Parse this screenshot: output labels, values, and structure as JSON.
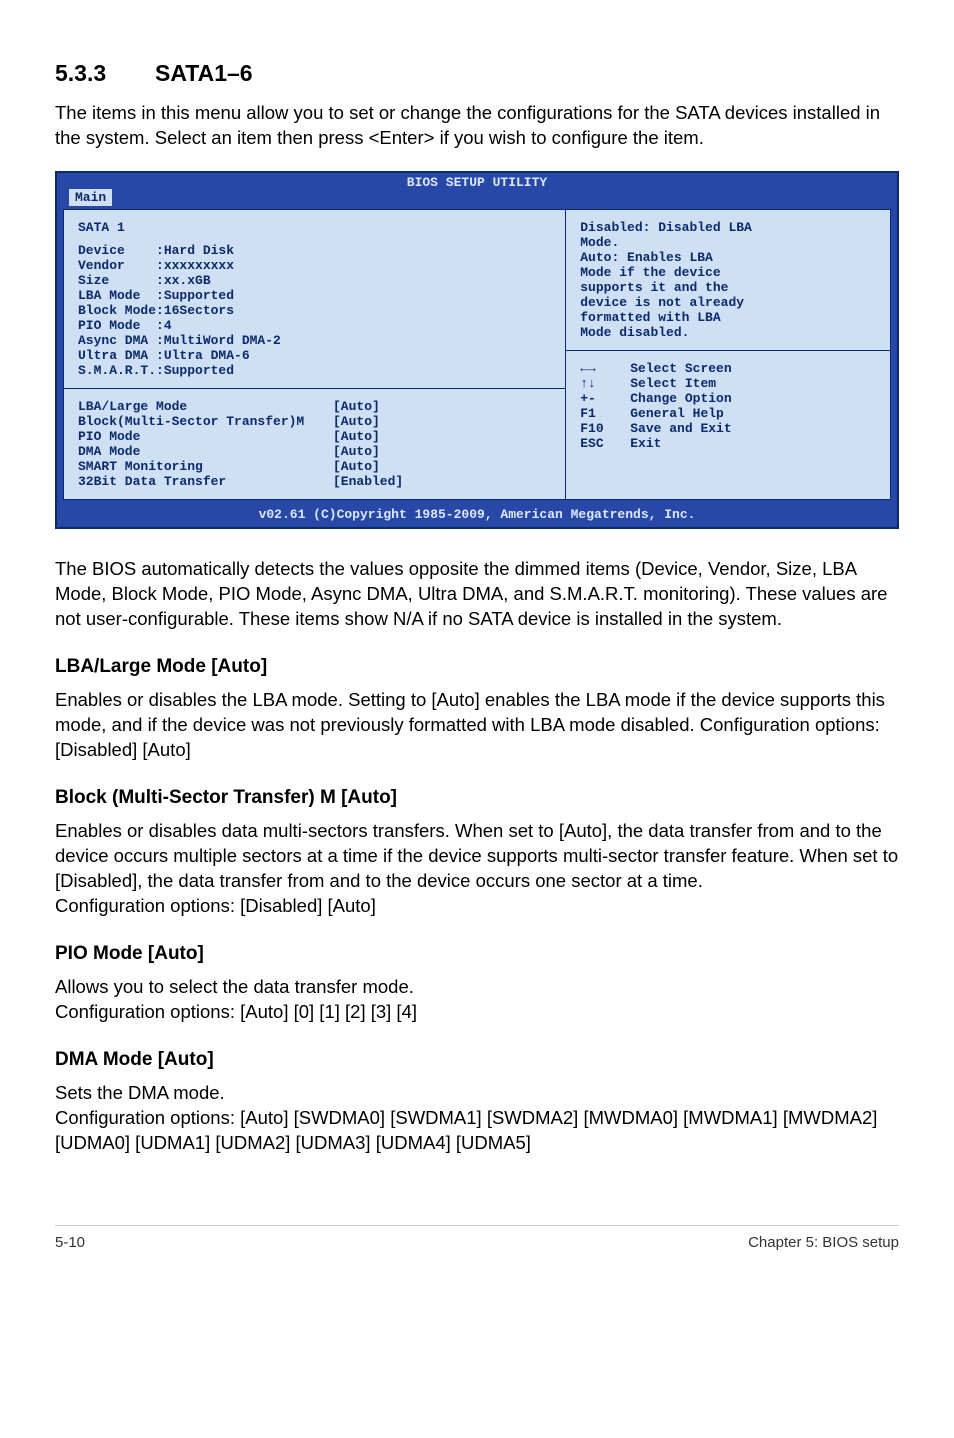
{
  "section": {
    "number": "5.3.3",
    "title": "SATA1–6",
    "intro": "The items in this menu allow you to set or change the configurations for the SATA devices installed in the system. Select an item then press <Enter> if you wish to configure the item."
  },
  "bios": {
    "title": "BIOS SETUP UTILITY",
    "tab": "Main",
    "left_heading": "SATA 1",
    "info_rows": [
      {
        "label": "Device    ",
        "value": ":Hard Disk"
      },
      {
        "label": "Vendor    ",
        "value": ":xxxxxxxxx"
      },
      {
        "label": "Size      ",
        "value": ":xx.xGB"
      },
      {
        "label": "LBA Mode  ",
        "value": ":Supported"
      },
      {
        "label": "Block Mode",
        "value": ":16Sectors"
      },
      {
        "label": "PIO Mode  ",
        "value": ":4"
      },
      {
        "label": "Async DMA ",
        "value": ":MultiWord DMA-2"
      },
      {
        "label": "Ultra DMA ",
        "value": ":Ultra DMA-6"
      },
      {
        "label": "S.M.A.R.T.",
        "value": ":Supported"
      }
    ],
    "setting_rows": [
      {
        "label": "LBA/Large Mode",
        "value": "[Auto]"
      },
      {
        "label": "Block(Multi-Sector Transfer)M",
        "value": "[Auto]"
      },
      {
        "label": "PIO Mode",
        "value": "[Auto]"
      },
      {
        "label": "DMA Mode",
        "value": "[Auto]"
      },
      {
        "label": "SMART Monitoring",
        "value": "[Auto]"
      },
      {
        "label": "32Bit Data Transfer",
        "value": "[Enabled]"
      }
    ],
    "help_top": [
      "Disabled: Disabled LBA",
      "Mode.",
      "Auto: Enables LBA",
      "Mode if the device",
      "supports it and the",
      "device is not already",
      "formatted with LBA",
      "Mode disabled."
    ],
    "nav_rows": [
      {
        "key": "←→",
        "label": "Select Screen"
      },
      {
        "key": "↑↓",
        "label": "Select Item"
      },
      {
        "key": "+-",
        "label": "Change Option"
      },
      {
        "key": "F1",
        "label": "General Help"
      },
      {
        "key": "F10",
        "label": "Save and Exit"
      },
      {
        "key": "ESC",
        "label": "Exit"
      }
    ],
    "footer": "v02.61 (C)Copyright 1985-2009, American Megatrends, Inc."
  },
  "paragraphs": {
    "after_bios": "The BIOS automatically detects the values opposite the dimmed items (Device, Vendor, Size, LBA Mode, Block Mode, PIO Mode, Async DMA, Ultra DMA, and S.M.A.R.T. monitoring). These values are not user-configurable. These items show N/A if no SATA device is installed in the system."
  },
  "items": [
    {
      "heading": "LBA/Large Mode [Auto]",
      "body": "Enables or disables the LBA mode. Setting to [Auto] enables the LBA mode if the device supports this mode, and if the device was not previously formatted with LBA mode disabled. Configuration options: [Disabled] [Auto]"
    },
    {
      "heading": "Block (Multi-Sector Transfer) M [Auto]",
      "body": "Enables or disables data multi-sectors transfers. When set to [Auto], the data transfer from and to the device occurs multiple sectors at a time if the device supports multi-sector transfer feature. When set to [Disabled], the data transfer from and to the device occurs one sector at a time.\nConfiguration options: [Disabled] [Auto]"
    },
    {
      "heading": "PIO Mode [Auto]",
      "body": "Allows you to select the data transfer mode.\nConfiguration options: [Auto] [0] [1] [2] [3] [4]"
    },
    {
      "heading": "DMA Mode [Auto]",
      "body": "Sets the DMA mode.\nConfiguration options: [Auto] [SWDMA0] [SWDMA1] [SWDMA2] [MWDMA0] [MWDMA1] [MWDMA2] [UDMA0] [UDMA1] [UDMA2] [UDMA3] [UDMA4] [UDMA5]"
    }
  ],
  "footer": {
    "left": "5-10",
    "right": "Chapter 5: BIOS setup"
  },
  "colors": {
    "bios_border": "#0a2a6b",
    "bios_bg": "#2848a8",
    "bios_panel_bg": "#cfe0f5",
    "bios_text": "#0a2a6b",
    "bios_header_text": "#dce8ff"
  }
}
